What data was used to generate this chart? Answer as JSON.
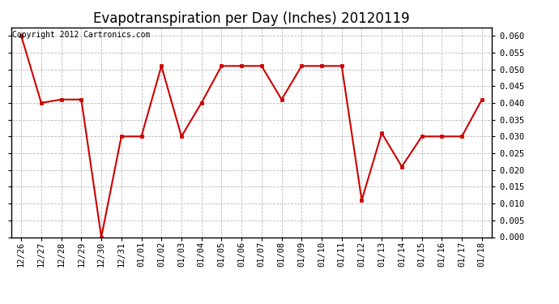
{
  "title": "Evapotranspiration per Day (Inches) 20120119",
  "copyright_text": "Copyright 2012 Cartronics.com",
  "labels": [
    "12/26",
    "12/27",
    "12/28",
    "12/29",
    "12/30",
    "12/31",
    "01/01",
    "01/02",
    "01/03",
    "01/04",
    "01/05",
    "01/06",
    "01/07",
    "01/08",
    "01/09",
    "01/10",
    "01/11",
    "01/12",
    "01/13",
    "01/14",
    "01/15",
    "01/16",
    "01/17",
    "01/18"
  ],
  "values": [
    0.06,
    0.04,
    0.041,
    0.041,
    0.0,
    0.03,
    0.03,
    0.051,
    0.03,
    0.04,
    0.051,
    0.051,
    0.051,
    0.041,
    0.051,
    0.051,
    0.051,
    0.011,
    0.031,
    0.021,
    0.03,
    0.03,
    0.03,
    0.041
  ],
  "line_color": "#cc0000",
  "marker": "s",
  "marker_size": 3,
  "ylim": [
    0.0,
    0.0625
  ],
  "yticks": [
    0.0,
    0.005,
    0.01,
    0.015,
    0.02,
    0.025,
    0.03,
    0.035,
    0.04,
    0.045,
    0.05,
    0.055,
    0.06
  ],
  "grid_color": "#bbbbbb",
  "background_color": "#ffffff",
  "title_fontsize": 12,
  "copyright_fontsize": 7,
  "tick_fontsize": 7.5
}
